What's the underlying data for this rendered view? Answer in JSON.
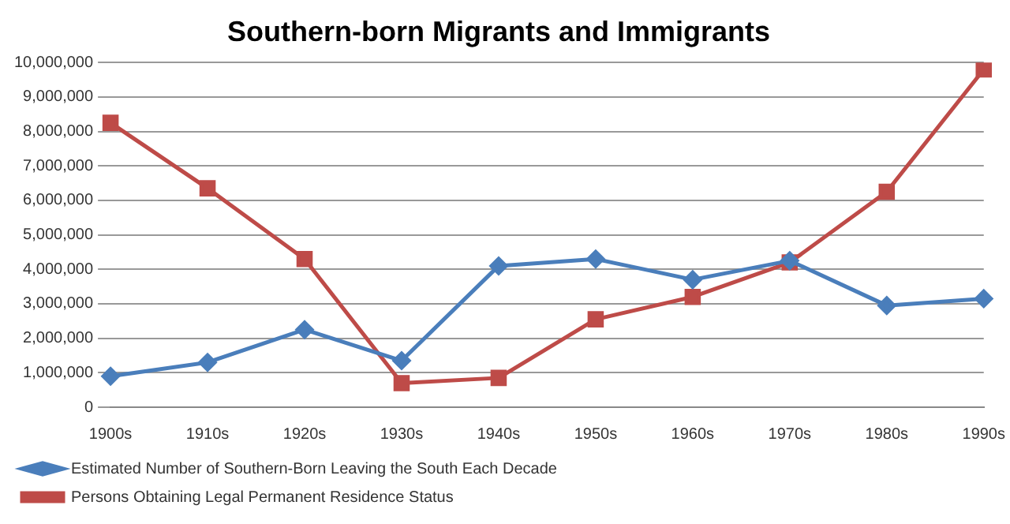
{
  "chart_data": {
    "type": "line",
    "title": "Southern-born Migrants and Immigrants",
    "categories": [
      "1900s",
      "1910s",
      "1920s",
      "1930s",
      "1940s",
      "1950s",
      "1960s",
      "1970s",
      "1980s",
      "1990s"
    ],
    "series": [
      {
        "name": "Estimated Number of Southern-Born Leaving the South Each Decade",
        "color": "#4a7ebb",
        "marker": "diamond",
        "values": [
          900000,
          1300000,
          2250000,
          1350000,
          4100000,
          4300000,
          3700000,
          4250000,
          2950000,
          3150000
        ]
      },
      {
        "name": "Persons Obtaining Legal Permanent Residence Status",
        "color": "#be4b48",
        "marker": "square",
        "values": [
          8250000,
          6350000,
          4300000,
          700000,
          850000,
          2550000,
          3200000,
          4200000,
          6250000,
          9800000
        ]
      }
    ],
    "ylim": [
      0,
      10000000
    ],
    "yticks": [
      0,
      {
        "value": 1000000,
        "label": "1,000,000"
      },
      {
        "value": 2000000,
        "label": "2,000,000"
      },
      {
        "value": 3000000,
        "label": "3,000,000"
      },
      {
        "value": 4000000,
        "label": "4,000,000"
      },
      {
        "value": 5000000,
        "label": "5,000,000"
      },
      {
        "value": 6000000,
        "label": "6,000,000"
      },
      {
        "value": 7000000,
        "label": "7,000,000"
      },
      {
        "value": 8000000,
        "label": "8,000,000"
      },
      {
        "value": 9000000,
        "label": "9,000,000"
      },
      {
        "value": 10000000,
        "label": "10,000,000"
      }
    ],
    "grid": "y",
    "legend": "bottom",
    "line_style": "solid"
  }
}
